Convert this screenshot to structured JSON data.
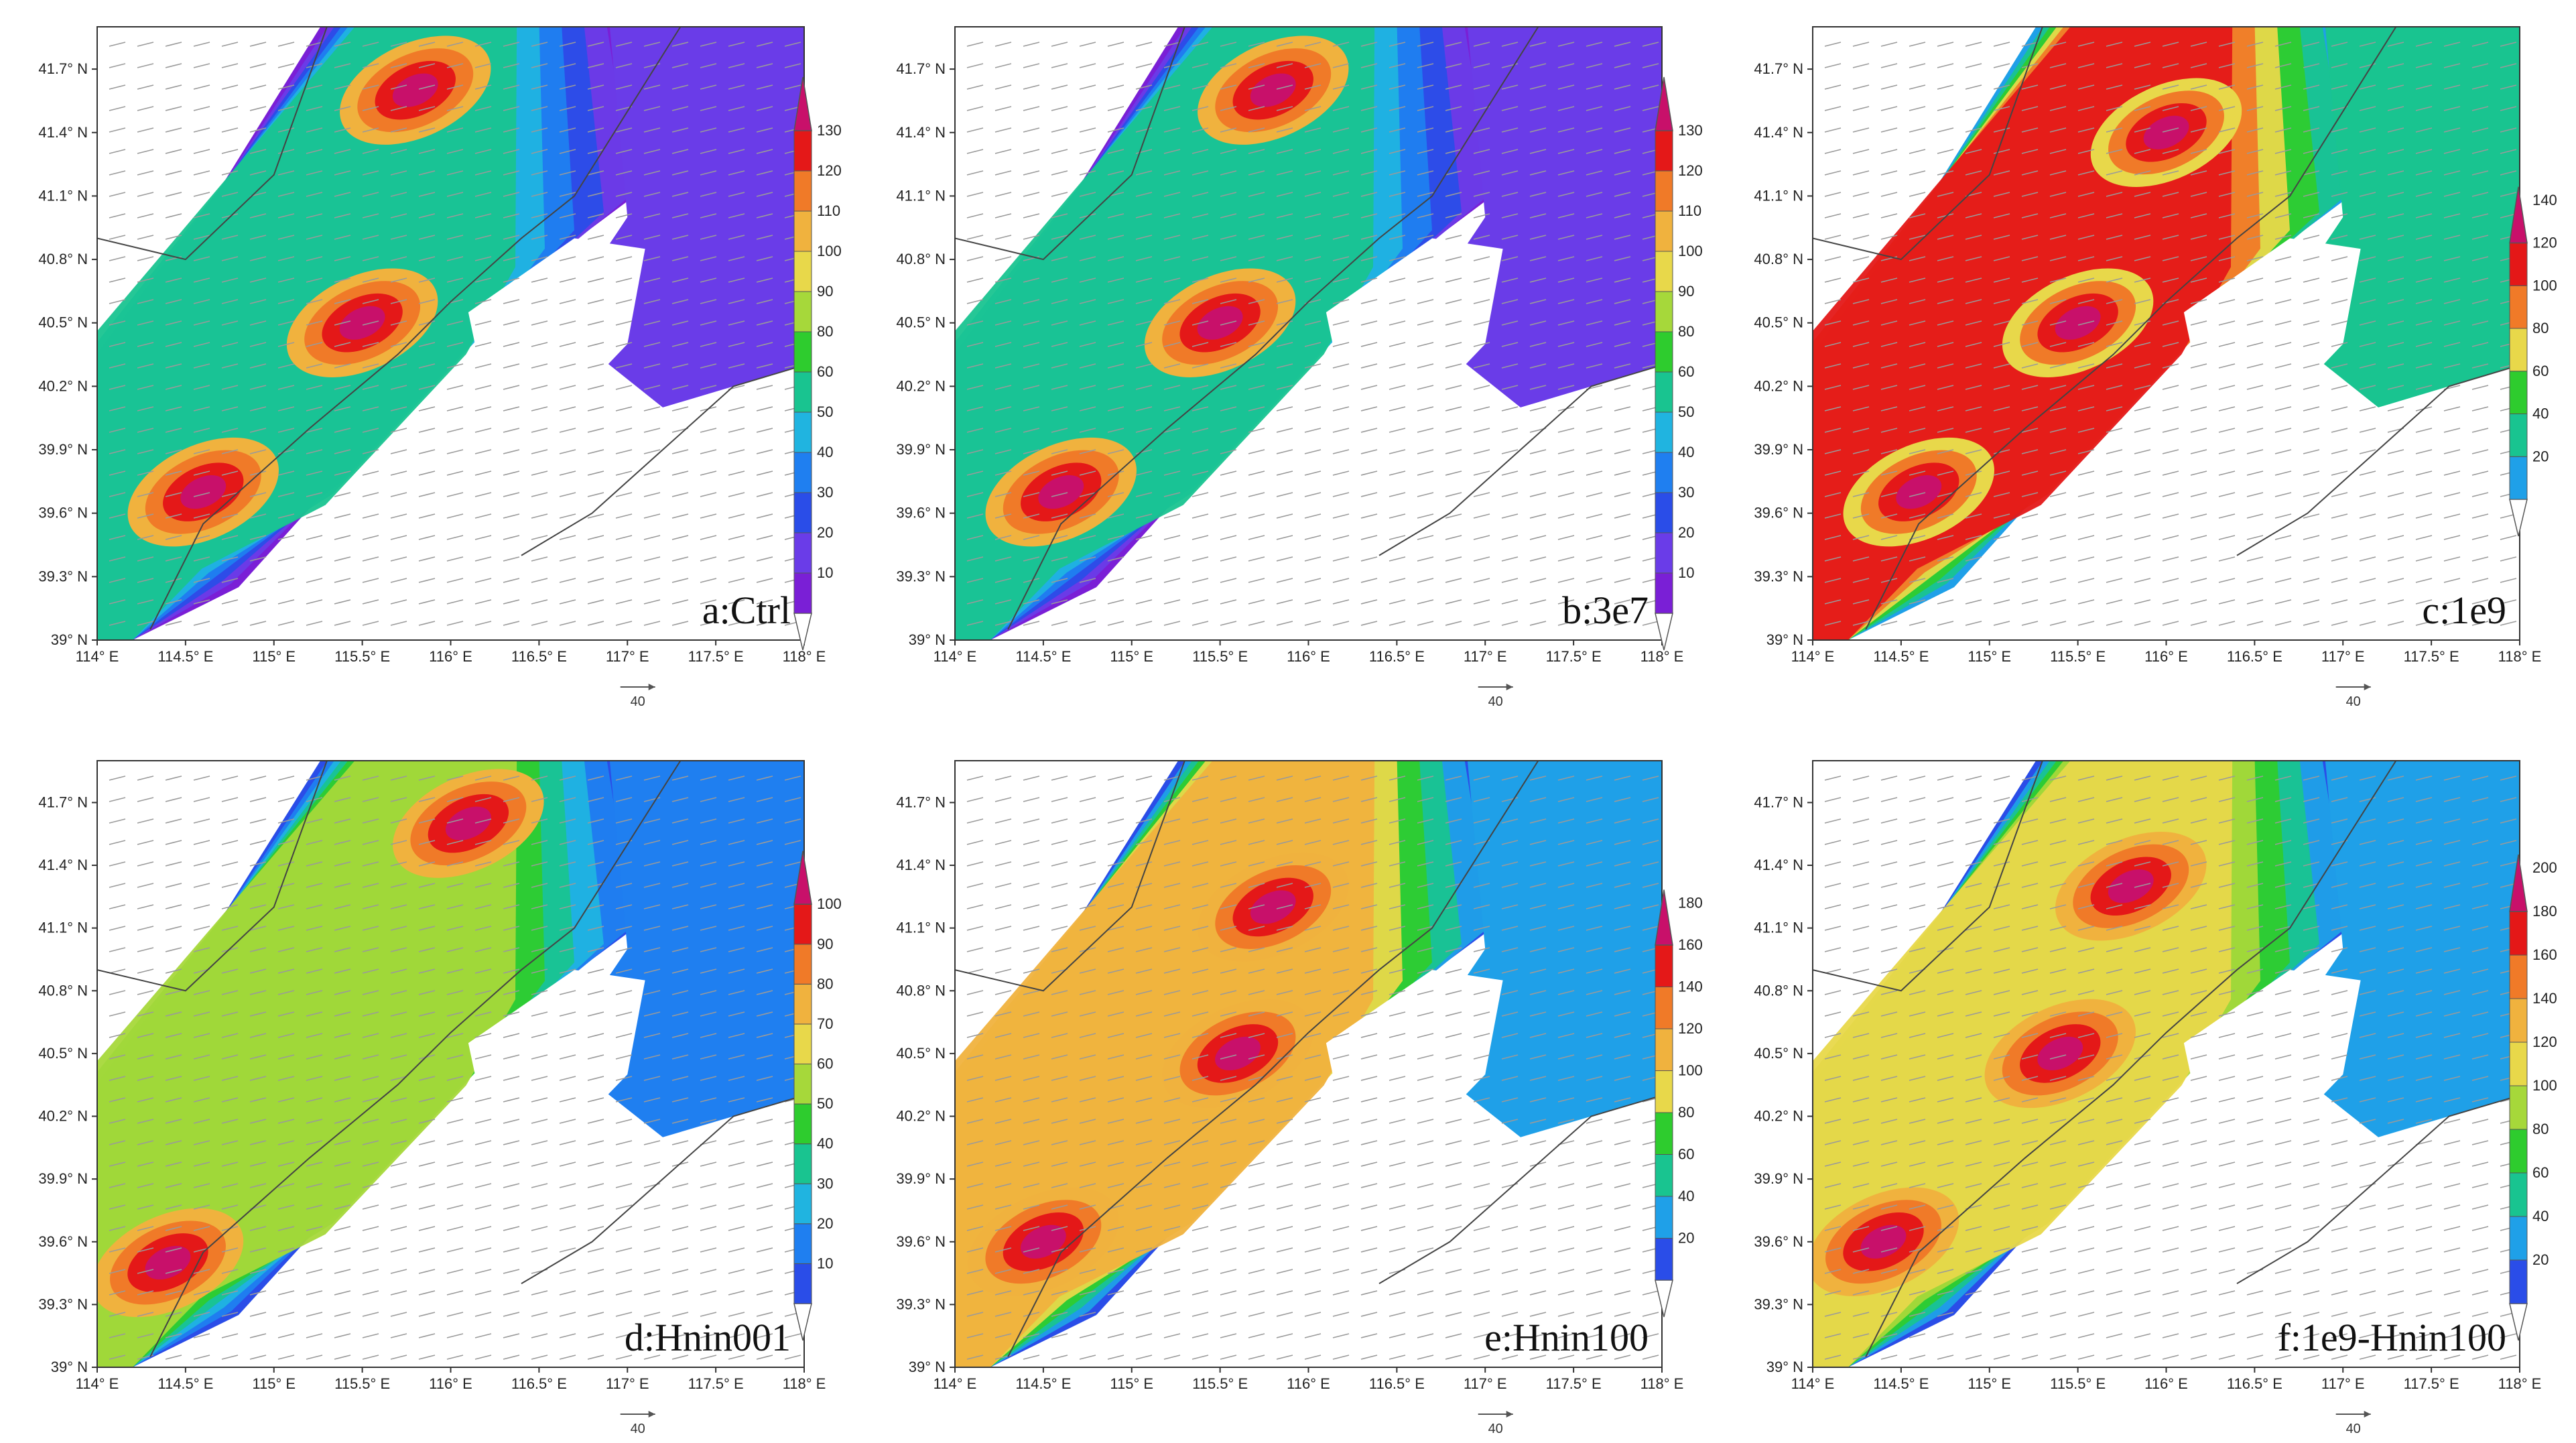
{
  "chart_data": [
    {
      "type": "heatmap",
      "label": "a:Ctrl",
      "xticks": [
        "114° E",
        "114.5° E",
        "115° E",
        "115.5° E",
        "116° E",
        "116.5° E",
        "117° E",
        "117.5° E",
        "118° E"
      ],
      "yticks": [
        "39° N",
        "39.3° N",
        "39.6° N",
        "39.9° N",
        "40.2° N",
        "40.5° N",
        "40.8° N",
        "41.1° N",
        "41.4° N",
        "41.7° N"
      ],
      "xlim": [
        114,
        118
      ],
      "ylim": [
        39,
        41.9
      ],
      "levels": [
        10,
        20,
        30,
        40,
        50,
        60,
        80,
        90,
        100,
        110,
        120,
        130
      ],
      "colors": [
        "#7a1fd6",
        "#6a3ce8",
        "#2a4de8",
        "#1f7ff0",
        "#20b4e0",
        "#19c490",
        "#2ecc2e",
        "#a6d83a",
        "#e8d84a",
        "#f0b23e",
        "#f07a28",
        "#e41818",
        "#c8106a"
      ],
      "peak_centers": [
        [
          115.5,
          40.5
        ],
        [
          115.8,
          41.6
        ],
        [
          114.6,
          39.7
        ]
      ],
      "vector_ref": "40"
    },
    {
      "type": "heatmap",
      "label": "b:3e7",
      "xticks": [
        "114° E",
        "114.5° E",
        "115° E",
        "115.5° E",
        "116° E",
        "116.5° E",
        "117° E",
        "117.5° E",
        "118° E"
      ],
      "yticks": [
        "39° N",
        "39.3° N",
        "39.6° N",
        "39.9° N",
        "40.2° N",
        "40.5° N",
        "40.8° N",
        "41.1° N",
        "41.4° N",
        "41.7° N"
      ],
      "xlim": [
        114,
        118
      ],
      "ylim": [
        39,
        41.9
      ],
      "levels": [
        10,
        20,
        30,
        40,
        50,
        60,
        80,
        90,
        100,
        110,
        120,
        130
      ],
      "colors": [
        "#7a1fd6",
        "#6a3ce8",
        "#2a4de8",
        "#1f7ff0",
        "#20b4e0",
        "#19c490",
        "#2ecc2e",
        "#a6d83a",
        "#e8d84a",
        "#f0b23e",
        "#f07a28",
        "#e41818",
        "#c8106a"
      ],
      "peak_centers": [
        [
          115.5,
          40.5
        ],
        [
          115.8,
          41.6
        ],
        [
          114.6,
          39.7
        ]
      ],
      "vector_ref": "40"
    },
    {
      "type": "heatmap",
      "label": "c:1e9",
      "xticks": [
        "114° E",
        "114.5° E",
        "115° E",
        "115.5° E",
        "116° E",
        "116.5° E",
        "117° E",
        "117.5° E",
        "118° E"
      ],
      "yticks": [
        "39° N",
        "39.3° N",
        "39.6° N",
        "39.9° N",
        "40.2° N",
        "40.5° N",
        "40.8° N",
        "41.1° N",
        "41.4° N",
        "41.7° N"
      ],
      "xlim": [
        114,
        118
      ],
      "ylim": [
        39,
        41.9
      ],
      "levels": [
        20,
        40,
        60,
        80,
        100,
        120,
        140
      ],
      "colors": [
        "#1fa0e8",
        "#19c490",
        "#2ecc2e",
        "#e8d84a",
        "#f07a28",
        "#e41818",
        "#c8106a"
      ],
      "peak_centers": [
        [
          115.5,
          40.5
        ],
        [
          116.0,
          41.4
        ],
        [
          114.6,
          39.7
        ]
      ],
      "vector_ref": "40"
    },
    {
      "type": "heatmap",
      "label": "d:Hnin001",
      "xticks": [
        "114° E",
        "114.5° E",
        "115° E",
        "115.5° E",
        "116° E",
        "116.5° E",
        "117° E",
        "117.5° E",
        "118° E"
      ],
      "yticks": [
        "39° N",
        "39.3° N",
        "39.6° N",
        "39.9° N",
        "40.2° N",
        "40.5° N",
        "40.8° N",
        "41.1° N",
        "41.4° N",
        "41.7° N"
      ],
      "xlim": [
        114,
        118
      ],
      "ylim": [
        39,
        41.9
      ],
      "levels": [
        10,
        20,
        30,
        40,
        50,
        60,
        70,
        80,
        90,
        100
      ],
      "colors": [
        "#2a4de8",
        "#1f7ff0",
        "#20b4e0",
        "#19c490",
        "#2ecc2e",
        "#a6d83a",
        "#e8d84a",
        "#f0b23e",
        "#f07a28",
        "#e41818",
        "#c8106a"
      ],
      "peak_centers": [
        [
          116.1,
          41.6
        ],
        [
          114.4,
          39.5
        ]
      ],
      "vector_ref": "40"
    },
    {
      "type": "heatmap",
      "label": "e:Hnin100",
      "xticks": [
        "114° E",
        "114.5° E",
        "115° E",
        "115.5° E",
        "116° E",
        "116.5° E",
        "117° E",
        "117.5° E",
        "118° E"
      ],
      "yticks": [
        "39° N",
        "39.3° N",
        "39.6° N",
        "39.9° N",
        "40.2° N",
        "40.5° N",
        "40.8° N",
        "41.1° N",
        "41.4° N",
        "41.7° N"
      ],
      "xlim": [
        114,
        118
      ],
      "ylim": [
        39,
        41.9
      ],
      "levels": [
        20,
        40,
        60,
        80,
        100,
        120,
        140,
        160,
        180
      ],
      "colors": [
        "#2a4de8",
        "#1fa0e8",
        "#19c490",
        "#2ecc2e",
        "#e8d84a",
        "#f0b23e",
        "#f07a28",
        "#e41818",
        "#c8106a"
      ],
      "peak_centers": [
        [
          115.8,
          41.2
        ],
        [
          115.6,
          40.5
        ],
        [
          114.5,
          39.6
        ]
      ],
      "vector_ref": "40"
    },
    {
      "type": "heatmap",
      "label": "f:1e9-Hnin100",
      "xticks": [
        "114° E",
        "114.5° E",
        "115° E",
        "115.5° E",
        "116° E",
        "116.5° E",
        "117° E",
        "117.5° E",
        "118° E"
      ],
      "yticks": [
        "39° N",
        "39.3° N",
        "39.6° N",
        "39.9° N",
        "40.2° N",
        "40.5° N",
        "40.8° N",
        "41.1° N",
        "41.4° N",
        "41.7° N"
      ],
      "xlim": [
        114,
        118
      ],
      "ylim": [
        39,
        41.9
      ],
      "levels": [
        20,
        40,
        60,
        80,
        100,
        120,
        140,
        160,
        180,
        200
      ],
      "colors": [
        "#2a4de8",
        "#1fa0e8",
        "#19c490",
        "#2ecc2e",
        "#a6d83a",
        "#e8d84a",
        "#f0b23e",
        "#f07a28",
        "#e41818",
        "#c8106a"
      ],
      "peak_centers": [
        [
          115.8,
          41.3
        ],
        [
          115.4,
          40.5
        ],
        [
          114.4,
          39.6
        ]
      ],
      "vector_ref": "40"
    }
  ]
}
